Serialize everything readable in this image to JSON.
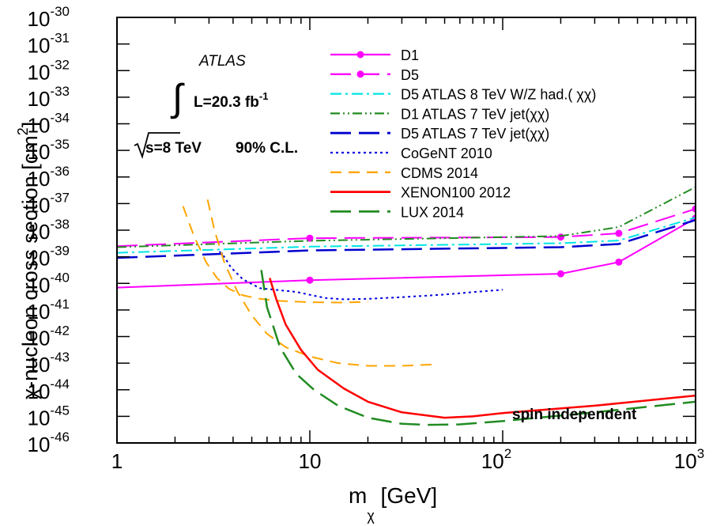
{
  "chart_data": {
    "type": "line",
    "title": "",
    "xlabel": "m",
    "xlabel_sub": "χ",
    "xlabel_unit": "[GeV]",
    "ylabel": "χ-nucleon cross  section [cm",
    "ylabel_exp": "2",
    "ylabel_close": "]",
    "xscale": "log",
    "yscale": "log",
    "xlim": [
      1,
      1000
    ],
    "ylim": [
      1e-46,
      1e-30
    ],
    "x_ticks": [
      {
        "value": 1,
        "base": "1",
        "exp": ""
      },
      {
        "value": 10,
        "base": "10",
        "exp": ""
      },
      {
        "value": 100,
        "base": "10",
        "exp": "2"
      },
      {
        "value": 1000,
        "base": "10",
        "exp": "3"
      }
    ],
    "y_ticks": [
      {
        "exp_value": -30,
        "base": "10",
        "exp": "-30"
      },
      {
        "exp_value": -31,
        "base": "10",
        "exp": "-31"
      },
      {
        "exp_value": -32,
        "base": "10",
        "exp": "-32"
      },
      {
        "exp_value": -33,
        "base": "10",
        "exp": "-33"
      },
      {
        "exp_value": -34,
        "base": "10",
        "exp": "-34"
      },
      {
        "exp_value": -35,
        "base": "10",
        "exp": "-35"
      },
      {
        "exp_value": -36,
        "base": "10",
        "exp": "-36"
      },
      {
        "exp_value": -37,
        "base": "10",
        "exp": "-37"
      },
      {
        "exp_value": -38,
        "base": "10",
        "exp": "-38"
      },
      {
        "exp_value": -39,
        "base": "10",
        "exp": "-39"
      },
      {
        "exp_value": -40,
        "base": "10",
        "exp": "-40"
      },
      {
        "exp_value": -41,
        "base": "10",
        "exp": "-41"
      },
      {
        "exp_value": -42,
        "base": "10",
        "exp": "-42"
      },
      {
        "exp_value": -43,
        "base": "10",
        "exp": "-43"
      },
      {
        "exp_value": -44,
        "base": "10",
        "exp": "-44"
      },
      {
        "exp_value": -45,
        "base": "10",
        "exp": "-45"
      },
      {
        "exp_value": -46,
        "base": "10",
        "exp": "-46"
      }
    ],
    "annotations": {
      "experiment": "ATLAS",
      "lumi_prefix": "L=20.3 fb",
      "lumi_exp": "-1",
      "energy": "s=8 TeV",
      "cl": "90% C.L.",
      "region": "spin independent"
    },
    "legend_position": "top-right",
    "series": [
      {
        "name": "D1",
        "color": "#ff00ff",
        "dash": "solid",
        "width": 2,
        "markers": true,
        "x": [
          1,
          10,
          200,
          400,
          1000
        ],
        "log10_y": [
          -40.16,
          -39.88,
          -39.64,
          -39.2,
          -37.55
        ]
      },
      {
        "name": "D5",
        "color": "#ff00ff",
        "dash": "long-dash",
        "width": 2,
        "markers": true,
        "x": [
          1,
          10,
          200,
          400,
          1000
        ],
        "log10_y": [
          -38.6,
          -38.3,
          -38.26,
          -38.12,
          -37.2
        ]
      },
      {
        "name": "D5 ATLAS 8 TeV W/Z had.( χχ)",
        "color": "#00e5e5",
        "dash": "dash-dot",
        "width": 2,
        "markers": false,
        "x": [
          1,
          10,
          200,
          400,
          1000
        ],
        "log10_y": [
          -38.85,
          -38.62,
          -38.49,
          -38.39,
          -37.52
        ]
      },
      {
        "name": "D1 ATLAS 7 TeV jet(χχ)",
        "color": "#228b22",
        "dash": "dash-dot-dot",
        "width": 2,
        "markers": false,
        "x": [
          1,
          10,
          200,
          400,
          1000
        ],
        "log10_y": [
          -38.64,
          -38.4,
          -38.22,
          -37.88,
          -36.38
        ]
      },
      {
        "name": "D5 ATLAS 7 TeV jet(χχ)",
        "color": "#0000d0",
        "dash": "long-dash",
        "width": 2.5,
        "markers": false,
        "x": [
          1,
          10,
          200,
          400,
          1000
        ],
        "log10_y": [
          -39.04,
          -38.76,
          -38.64,
          -38.52,
          -37.62
        ]
      },
      {
        "name": "CoGeNT 2010",
        "color": "#0000e0",
        "dash": "dotted",
        "width": 2,
        "markers": false,
        "x": [
          3.4,
          3.6,
          3.9,
          4.5,
          5.5,
          7,
          8.5,
          10,
          12,
          15,
          20,
          30,
          50,
          70,
          100
        ],
        "log10_y": [
          -38.8,
          -39.0,
          -39.4,
          -39.85,
          -40.18,
          -40.26,
          -40.32,
          -40.43,
          -40.55,
          -40.6,
          -40.58,
          -40.52,
          -40.42,
          -40.33,
          -40.24
        ]
      },
      {
        "name": "CDMS 2014",
        "color": "#ffa500",
        "dash": "dashed",
        "width": 2,
        "markers": false,
        "x": [
          2.2,
          2.5,
          2.9,
          3.3,
          3.8,
          4.5,
          5.5,
          7,
          10,
          15,
          20
        ],
        "log10_y": [
          -37.1,
          -38.2,
          -39.2,
          -39.8,
          -40.2,
          -40.45,
          -40.58,
          -40.66,
          -40.71,
          -40.72,
          -40.69
        ],
        "segments": [
          {
            "x": [
              2.95,
              3.2,
              3.6,
              4.2,
              5.0,
              6.0,
              7.5,
              10,
              14,
              20,
              30,
              43
            ],
            "log10_y": [
              -36.85,
              -38.0,
              -39.2,
              -40.3,
              -41.2,
              -41.9,
              -42.4,
              -42.75,
              -43.0,
              -43.1,
              -43.1,
              -43.05
            ]
          }
        ]
      },
      {
        "name": "XENON100 2012",
        "color": "#ff0000",
        "dash": "solid",
        "width": 2.5,
        "markers": false,
        "x": [
          6.2,
          6.7,
          7.5,
          9,
          11,
          15,
          20,
          30,
          50,
          70,
          100,
          300,
          1000
        ],
        "log10_y": [
          -39.8,
          -40.6,
          -41.55,
          -42.5,
          -43.25,
          -43.95,
          -44.45,
          -44.85,
          -45.05,
          -45.0,
          -44.88,
          -44.6,
          -44.22
        ]
      },
      {
        "name": "LUX 2014",
        "color": "#228b22",
        "dash": "long-dash",
        "width": 2.5,
        "markers": false,
        "x": [
          5.6,
          6.0,
          7.0,
          8.5,
          10.5,
          14,
          20,
          30,
          40,
          60,
          100,
          300,
          1000
        ],
        "log10_y": [
          -39.5,
          -40.9,
          -42.4,
          -43.4,
          -44.0,
          -44.6,
          -45.05,
          -45.28,
          -45.32,
          -45.3,
          -45.18,
          -44.85,
          -44.45
        ]
      }
    ]
  }
}
